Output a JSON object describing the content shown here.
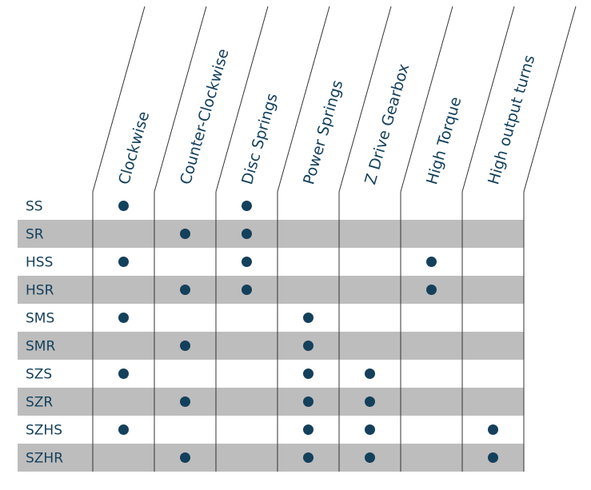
{
  "columns": [
    "Clockwise",
    "Counter-Clockwise",
    "Disc Springs",
    "Power Springs",
    "Z Drive Gearbox",
    "High Torque",
    "High output turns"
  ],
  "rows": [
    {
      "label": "SS",
      "marks": [
        1,
        0,
        1,
        0,
        0,
        0,
        0
      ]
    },
    {
      "label": "SR",
      "marks": [
        0,
        1,
        1,
        0,
        0,
        0,
        0
      ]
    },
    {
      "label": "HSS",
      "marks": [
        1,
        0,
        1,
        0,
        0,
        1,
        0
      ]
    },
    {
      "label": "HSR",
      "marks": [
        0,
        1,
        1,
        0,
        0,
        1,
        0
      ]
    },
    {
      "label": "SMS",
      "marks": [
        1,
        0,
        0,
        1,
        0,
        0,
        0
      ]
    },
    {
      "label": "SMR",
      "marks": [
        0,
        1,
        0,
        1,
        0,
        0,
        0
      ]
    },
    {
      "label": "SZS",
      "marks": [
        1,
        0,
        0,
        1,
        1,
        0,
        0
      ]
    },
    {
      "label": "SZR",
      "marks": [
        0,
        1,
        0,
        1,
        1,
        0,
        0
      ]
    },
    {
      "label": "SZHS",
      "marks": [
        1,
        0,
        0,
        1,
        1,
        0,
        1
      ]
    },
    {
      "label": "SZHR",
      "marks": [
        0,
        1,
        0,
        1,
        1,
        0,
        1
      ]
    }
  ],
  "colors": {
    "text": "#14405c",
    "dot": "#14405c",
    "stripe": "#bdbdbd",
    "line": "#333333"
  }
}
